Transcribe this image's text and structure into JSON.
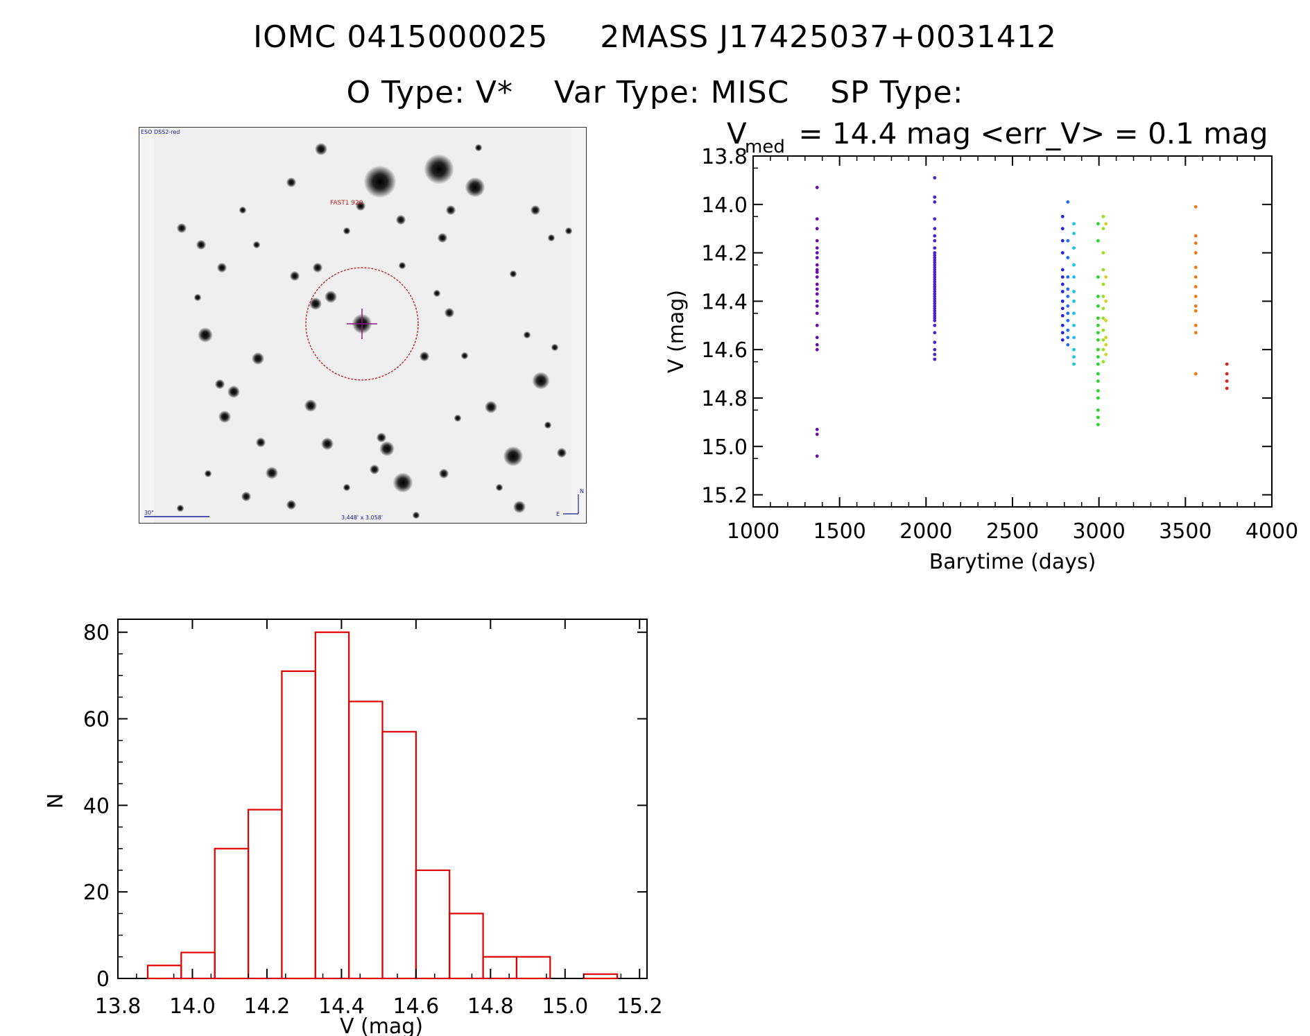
{
  "header": {
    "id_line": "IOMC 0415000025     2MASS J17425037+0031412",
    "otype": "O Type: V*",
    "vartype": "Var Type: MISC",
    "sptype": "SP Type:"
  },
  "finder": {
    "survey": "ESO DSS2-red",
    "object_label": "FAST1 920",
    "scale": "30\"",
    "fov": "3.448' x 3.058'",
    "north": "N",
    "east": "E"
  },
  "lightcurve_title": {
    "v": "V",
    "sub": "med",
    "rest": " = 14.4 mag <err_V> = 0.1 mag"
  },
  "chart_data": [
    {
      "type": "scatter",
      "title": "V_med = 14.4 mag <err_V> = 0.1 mag",
      "xlabel": "Barytime (days)",
      "ylabel": "V (mag)",
      "xlim": [
        1000,
        4000
      ],
      "ylim": [
        15.25,
        13.8
      ],
      "y_inverted": true,
      "xticks": [
        1000,
        1500,
        2000,
        2500,
        3000,
        3500,
        4000
      ],
      "yticks": [
        13.8,
        14.0,
        14.2,
        14.4,
        14.6,
        14.8,
        15.0,
        15.2
      ],
      "series": [
        {
          "name": "epoch1",
          "color": "#6a0dad",
          "x": 1370,
          "values": [
            13.93,
            14.06,
            14.1,
            14.15,
            14.18,
            14.2,
            14.22,
            14.25,
            14.27,
            14.28,
            14.3,
            14.33,
            14.35,
            14.37,
            14.4,
            14.42,
            14.45,
            14.5,
            14.55,
            14.58,
            14.6,
            14.93,
            14.95,
            15.04
          ]
        },
        {
          "name": "epoch2",
          "color": "#5020c8",
          "x": 2050,
          "values": [
            13.89,
            13.97,
            13.99,
            14.06,
            14.1,
            14.13,
            14.15,
            14.18,
            14.2,
            14.21,
            14.22,
            14.23,
            14.24,
            14.25,
            14.26,
            14.27,
            14.28,
            14.29,
            14.3,
            14.31,
            14.32,
            14.33,
            14.34,
            14.35,
            14.36,
            14.37,
            14.38,
            14.39,
            14.4,
            14.41,
            14.42,
            14.43,
            14.44,
            14.45,
            14.46,
            14.47,
            14.48,
            14.5,
            14.53,
            14.57,
            14.6,
            14.62,
            14.64
          ]
        },
        {
          "name": "epoch3",
          "color": "#1a2ad8",
          "x": 2790,
          "values": [
            14.05,
            14.1,
            14.15,
            14.2,
            14.27,
            14.3,
            14.33,
            14.36,
            14.4,
            14.43,
            14.46,
            14.5,
            14.53,
            14.56
          ]
        },
        {
          "name": "epoch4",
          "color": "#1e6cf0",
          "x": 2820,
          "values": [
            13.99,
            14.15,
            14.22,
            14.3,
            14.35,
            14.38,
            14.42,
            14.45,
            14.48,
            14.52,
            14.55,
            14.58
          ]
        },
        {
          "name": "epoch5",
          "color": "#10c8e8",
          "x": 2855,
          "values": [
            14.08,
            14.12,
            14.18,
            14.25,
            14.3,
            14.36,
            14.4,
            14.45,
            14.5,
            14.55,
            14.6,
            14.63,
            14.66
          ]
        },
        {
          "name": "epoch6",
          "color": "#22d822",
          "x": 2995,
          "values": [
            14.08,
            14.15,
            14.3,
            14.38,
            14.42,
            14.47,
            14.5,
            14.53,
            14.56,
            14.6,
            14.63,
            14.66,
            14.7,
            14.73,
            14.77,
            14.8,
            14.85,
            14.88,
            14.91
          ]
        },
        {
          "name": "epoch7",
          "color": "#9ae020",
          "x": 3025,
          "values": [
            14.05,
            14.1,
            14.2,
            14.27,
            14.33,
            14.38,
            14.43,
            14.47,
            14.52,
            14.56,
            14.6,
            14.65
          ]
        },
        {
          "name": "epoch8",
          "color": "#d8d020",
          "x": 3040,
          "values": [
            14.08,
            14.3,
            14.4,
            14.48,
            14.55,
            14.58,
            14.62
          ]
        },
        {
          "name": "epoch9",
          "color": "#f07810",
          "x": 3560,
          "values": [
            14.01,
            14.13,
            14.16,
            14.2,
            14.26,
            14.3,
            14.34,
            14.38,
            14.42,
            14.44,
            14.5,
            14.53,
            14.7
          ]
        },
        {
          "name": "epoch10",
          "color": "#e02020",
          "x": 3740,
          "values": [
            14.66,
            14.7,
            14.73,
            14.76
          ]
        }
      ]
    },
    {
      "type": "bar",
      "subtype": "histogram",
      "xlabel": "V (mag)",
      "ylabel": "N",
      "xlim": [
        13.8,
        15.22
      ],
      "ylim": [
        0,
        83
      ],
      "xticks": [
        13.8,
        14.0,
        14.2,
        14.4,
        14.6,
        14.8,
        15.0,
        15.2
      ],
      "yticks": [
        0,
        20,
        40,
        60,
        80
      ],
      "color": "#e00000",
      "bin_edges": [
        13.88,
        13.97,
        14.06,
        14.15,
        14.24,
        14.33,
        14.42,
        14.51,
        14.6,
        14.69,
        14.78,
        14.87,
        14.96,
        15.05,
        15.14
      ],
      "values": [
        3,
        6,
        30,
        39,
        71,
        80,
        64,
        57,
        25,
        15,
        5,
        5,
        0,
        1
      ]
    }
  ]
}
